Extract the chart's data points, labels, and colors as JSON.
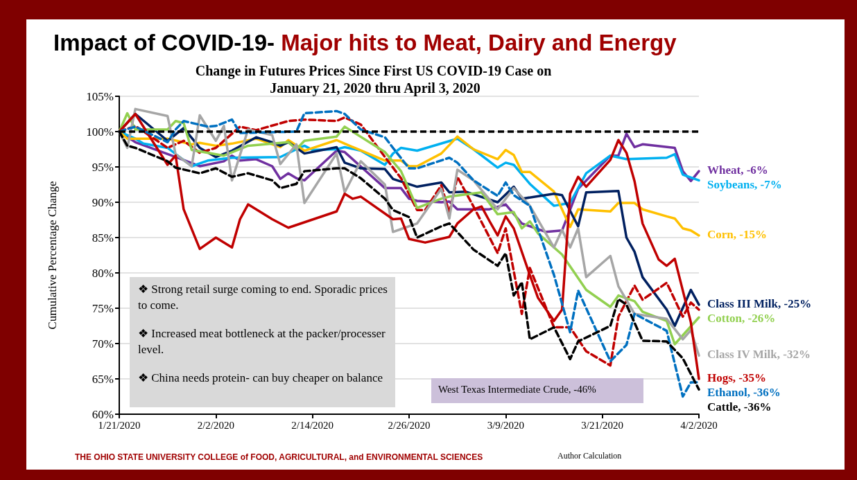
{
  "chart_data": {
    "type": "line",
    "title": "Impact of COVID-19- Major hits to Meat, Dairy and Energy",
    "subtitle": "Change in Futures Prices Since First US COVID-19 Case on January 21, 2020 thru April 3, 2020",
    "ylabel": "Cumulative Percentage Change",
    "xlim": [
      "2020-01-21",
      "2020-04-02"
    ],
    "xticks": [
      {
        "value": "2020-01-21",
        "label": "1/21/2020"
      },
      {
        "value": "2020-02-02",
        "label": "2/2/2020"
      },
      {
        "value": "2020-02-14",
        "label": "2/14/2020"
      },
      {
        "value": "2020-02-26",
        "label": "2/26/2020"
      },
      {
        "value": "2020-03-09",
        "label": "3/9/2020"
      },
      {
        "value": "2020-03-21",
        "label": "3/21/2020"
      },
      {
        "value": "2020-04-02",
        "label": "4/2/2020"
      }
    ],
    "ylim": [
      60,
      105
    ],
    "yticks": [
      {
        "value": 60,
        "label": "60%"
      },
      {
        "value": 65,
        "label": "65%"
      },
      {
        "value": 70,
        "label": "70%"
      },
      {
        "value": 75,
        "label": "75%"
      },
      {
        "value": 80,
        "label": "80%"
      },
      {
        "value": 85,
        "label": "85%"
      },
      {
        "value": 90,
        "label": "90%"
      },
      {
        "value": 95,
        "label": "95%"
      },
      {
        "value": 100,
        "label": "100%"
      },
      {
        "value": 105,
        "label": "105%"
      }
    ],
    "grid": "y",
    "legend": false,
    "marker": "none",
    "ref_lines": [
      {
        "axis": "y",
        "value": 100,
        "color": "#000000",
        "line_style": "dashed"
      }
    ],
    "annotations": [
      "❖ Strong retail surge coming to end. Sporadic prices to come.",
      "❖ Increased meat bottleneck at the packer/processer level.",
      "❖ China needs protein- can buy cheaper on balance",
      "West Texas Intermediate Crude, -46%",
      "THE OHIO STATE UNIVERSITY COLLEGE of FOOD, AGRICULTURAL, and ENVIRONMENTAL SCIENCES",
      "Author Calculation"
    ],
    "series": [
      {
        "name": "Wheat, -6%",
        "color": "#7030a0",
        "line_style": "solid",
        "x": [
          "2020-01-21",
          "2020-01-23",
          "2020-01-28",
          "2020-01-31",
          "2020-02-03",
          "2020-02-04",
          "2020-02-05",
          "2020-02-07",
          "2020-02-09",
          "2020-02-10",
          "2020-02-11",
          "2020-02-12",
          "2020-02-13",
          "2020-02-17",
          "2020-02-18",
          "2020-02-23",
          "2020-02-25",
          "2020-02-26",
          "2020-02-27",
          "2020-03-01",
          "2020-03-02",
          "2020-03-03",
          "2020-03-05",
          "2020-03-07",
          "2020-03-09",
          "2020-03-11",
          "2020-03-14",
          "2020-03-16",
          "2020-03-18",
          "2020-03-22",
          "2020-03-23",
          "2020-03-24",
          "2020-03-25",
          "2020-03-26",
          "2020-03-30",
          "2020-03-31",
          "2020-04-01",
          "2020-04-02"
        ],
        "values": [
          100,
          98.5,
          96.4,
          95.1,
          95.8,
          96.6,
          95.9,
          96.1,
          95.1,
          93.3,
          94.1,
          93.4,
          93.1,
          97.3,
          97.1,
          92,
          92,
          90.5,
          90.2,
          90,
          90.1,
          89,
          89,
          89,
          89.7,
          87,
          85.8,
          86,
          91.9,
          96.6,
          96.6,
          99.7,
          97.8,
          98.2,
          97.7,
          94.4,
          93,
          94.4
        ]
      },
      {
        "name": "Soybeans, -7%",
        "color": "#00b0f0",
        "line_style": "solid",
        "x": [
          "2020-01-21",
          "2020-01-23",
          "2020-01-24",
          "2020-01-27",
          "2020-01-30",
          "2020-02-01",
          "2020-02-04",
          "2020-02-10",
          "2020-02-12",
          "2020-02-13",
          "2020-02-14",
          "2020-02-17",
          "2020-02-18",
          "2020-02-20",
          "2020-02-23",
          "2020-02-24",
          "2020-02-25",
          "2020-02-27",
          "2020-03-03",
          "2020-03-05",
          "2020-03-08",
          "2020-03-09",
          "2020-03-10",
          "2020-03-12",
          "2020-03-15",
          "2020-03-17",
          "2020-03-19",
          "2020-03-22",
          "2020-03-24",
          "2020-03-29",
          "2020-03-30",
          "2020-03-31",
          "2020-04-02"
        ],
        "values": [
          100,
          99,
          98.3,
          97.7,
          95.1,
          95.9,
          96.3,
          96.4,
          97.5,
          98,
          97.4,
          97.5,
          97.8,
          97.3,
          95.3,
          96.9,
          97.7,
          97.3,
          99,
          97.5,
          94.9,
          95.6,
          95.3,
          92.6,
          89.5,
          89.9,
          94.1,
          96.6,
          96.1,
          96.3,
          96.8,
          93.9,
          93.1
        ]
      },
      {
        "name": "Corn, -15%",
        "color": "#ffc000",
        "line_style": "solid",
        "x": [
          "2020-01-21",
          "2020-01-22",
          "2020-01-27",
          "2020-01-30",
          "2020-01-31",
          "2020-02-02",
          "2020-02-04",
          "2020-02-07",
          "2020-02-10",
          "2020-02-11",
          "2020-02-13",
          "2020-02-17",
          "2020-02-18",
          "2020-02-23",
          "2020-02-25",
          "2020-02-26",
          "2020-02-27",
          "2020-03-01",
          "2020-03-03",
          "2020-03-05",
          "2020-03-08",
          "2020-03-09",
          "2020-03-10",
          "2020-03-11",
          "2020-03-12",
          "2020-03-15",
          "2020-03-17",
          "2020-03-18",
          "2020-03-22",
          "2020-03-23",
          "2020-03-25",
          "2020-03-26",
          "2020-03-29",
          "2020-03-30",
          "2020-03-31",
          "2020-04-01",
          "2020-04-02"
        ],
        "values": [
          100,
          99,
          99,
          98.2,
          98.4,
          98,
          98.3,
          99,
          97.8,
          98.8,
          97.3,
          98.8,
          98.3,
          95.9,
          95.9,
          95.1,
          95.1,
          96.9,
          99.3,
          97.5,
          96.1,
          97.4,
          96.7,
          94.3,
          94.3,
          91.5,
          86.5,
          89,
          88.7,
          89.9,
          89.9,
          89,
          88,
          87.7,
          86.3,
          86,
          85.3
        ]
      },
      {
        "name": "Class III Milk, -25%",
        "color": "#002060",
        "line_style": "solid",
        "x": [
          "2020-01-21",
          "2020-01-23",
          "2020-01-27",
          "2020-01-29",
          "2020-01-31",
          "2020-02-02",
          "2020-02-04",
          "2020-02-07",
          "2020-02-09",
          "2020-02-10",
          "2020-02-11",
          "2020-02-13",
          "2020-02-17",
          "2020-02-18",
          "2020-02-20",
          "2020-02-23",
          "2020-02-24",
          "2020-02-27",
          "2020-03-01",
          "2020-03-02",
          "2020-03-04",
          "2020-03-08",
          "2020-03-10",
          "2020-03-11",
          "2020-03-15",
          "2020-03-16",
          "2020-03-18",
          "2020-03-19",
          "2020-03-23",
          "2020-03-24",
          "2020-03-25",
          "2020-03-26",
          "2020-03-29",
          "2020-03-30",
          "2020-04-01",
          "2020-04-02"
        ],
        "values": [
          100,
          102.5,
          98.7,
          100.5,
          97.7,
          96.4,
          97.3,
          99.2,
          98.5,
          98,
          98.5,
          96.9,
          97.8,
          95.6,
          94.8,
          94.7,
          93.3,
          92.2,
          92.8,
          91.4,
          91.5,
          90,
          92.2,
          90.5,
          91.2,
          91,
          86.6,
          91.4,
          91.6,
          85,
          83,
          79.4,
          74.8,
          72.5,
          77.6,
          75.5
        ]
      },
      {
        "color": "#c00000",
        "line_style": "dashed",
        "x": [
          "2020-01-21",
          "2020-01-23",
          "2020-01-27",
          "2020-01-29",
          "2020-01-31",
          "2020-02-02",
          "2020-02-05",
          "2020-02-07",
          "2020-02-11",
          "2020-02-13",
          "2020-02-17",
          "2020-02-18",
          "2020-02-20",
          "2020-02-23",
          "2020-02-25",
          "2020-02-27",
          "2020-02-28",
          "2020-03-01",
          "2020-03-02",
          "2020-03-03",
          "2020-03-05",
          "2020-03-08",
          "2020-03-09",
          "2020-03-11",
          "2020-03-12",
          "2020-03-15",
          "2020-03-17",
          "2020-03-19",
          "2020-03-22",
          "2020-03-23",
          "2020-03-25",
          "2020-03-26",
          "2020-03-29",
          "2020-03-31",
          "2020-04-01",
          "2020-04-02"
        ],
        "values": [
          100,
          100.8,
          97.7,
          98.7,
          97,
          97.7,
          100.7,
          100.2,
          101.5,
          101.7,
          101.5,
          102,
          101,
          96.4,
          93.4,
          88.9,
          88.9,
          92.4,
          88.5,
          93.6,
          89.4,
          82.8,
          86.3,
          74.2,
          80.7,
          72.3,
          72.3,
          68.9,
          66.9,
          73.8,
          78.2,
          76.2,
          78.6,
          73.8,
          75.8,
          74.8
        ]
      },
      {
        "name": "Cotton, -26%",
        "color": "#92d050",
        "line_style": "solid",
        "x": [
          "2020-01-21",
          "2020-01-22",
          "2020-01-23",
          "2020-01-27",
          "2020-01-28",
          "2020-01-29",
          "2020-01-30",
          "2020-02-03",
          "2020-02-06",
          "2020-02-11",
          "2020-02-12",
          "2020-02-13",
          "2020-02-17",
          "2020-02-18",
          "2020-02-23",
          "2020-02-25",
          "2020-02-27",
          "2020-03-01",
          "2020-03-02",
          "2020-03-06",
          "2020-03-08",
          "2020-03-10",
          "2020-03-11",
          "2020-03-12",
          "2020-03-13",
          "2020-03-16",
          "2020-03-19",
          "2020-03-22",
          "2020-03-23",
          "2020-03-25",
          "2020-03-26",
          "2020-03-29",
          "2020-03-30",
          "2020-04-02"
        ],
        "values": [
          100,
          102.6,
          100.3,
          100.3,
          101.5,
          101.2,
          97.4,
          96.6,
          98,
          98.5,
          97.5,
          98.7,
          99.3,
          100.7,
          97.1,
          94.4,
          89.2,
          90.5,
          90.8,
          91.4,
          88.3,
          88.6,
          86.3,
          87.3,
          85.6,
          82.6,
          77.6,
          75.2,
          76.8,
          76,
          74.5,
          73.2,
          69.9,
          73.7
        ]
      },
      {
        "name": "Class IV Milk, -32%",
        "color": "#a6a6a6",
        "line_style": "solid",
        "x": [
          "2020-01-21",
          "2020-01-22",
          "2020-01-23",
          "2020-01-27",
          "2020-01-28",
          "2020-01-30",
          "2020-01-31",
          "2020-02-02",
          "2020-02-03",
          "2020-02-04",
          "2020-02-06",
          "2020-02-09",
          "2020-02-10",
          "2020-02-12",
          "2020-02-13",
          "2020-02-17",
          "2020-02-18",
          "2020-02-20",
          "2020-02-23",
          "2020-02-24",
          "2020-02-25",
          "2020-02-27",
          "2020-03-01",
          "2020-03-02",
          "2020-03-03",
          "2020-03-05",
          "2020-03-08",
          "2020-03-10",
          "2020-03-12",
          "2020-03-15",
          "2020-03-16",
          "2020-03-17",
          "2020-03-18",
          "2020-03-19",
          "2020-03-22",
          "2020-03-23",
          "2020-03-25",
          "2020-03-29",
          "2020-03-31",
          "2020-04-01",
          "2020-04-02"
        ],
        "values": [
          100,
          97.7,
          103.2,
          102.2,
          96.8,
          95.1,
          102.3,
          98.7,
          100.8,
          93.1,
          100.3,
          99.5,
          95.4,
          98.2,
          89.9,
          96.9,
          91.4,
          95.8,
          92.5,
          85.8,
          86.2,
          87,
          91.9,
          87.7,
          94.6,
          93.1,
          89,
          92,
          89.5,
          83.6,
          86.1,
          83.6,
          86.3,
          79.4,
          82.4,
          78.1,
          74.2,
          73.5,
          70.6,
          71.9,
          68.3
        ]
      },
      {
        "name": "Hogs, -35%",
        "color": "#c00000",
        "line_style": "solid",
        "x": [
          "2020-01-21",
          "2020-01-23",
          "2020-01-27",
          "2020-01-28",
          "2020-01-29",
          "2020-01-31",
          "2020-02-02",
          "2020-02-04",
          "2020-02-05",
          "2020-02-06",
          "2020-02-09",
          "2020-02-11",
          "2020-02-17",
          "2020-02-18",
          "2020-02-19",
          "2020-02-20",
          "2020-02-24",
          "2020-02-25",
          "2020-02-26",
          "2020-02-28",
          "2020-03-02",
          "2020-03-03",
          "2020-03-05",
          "2020-03-06",
          "2020-03-07",
          "2020-03-08",
          "2020-03-09",
          "2020-03-10",
          "2020-03-12",
          "2020-03-13",
          "2020-03-15",
          "2020-03-16",
          "2020-03-17",
          "2020-03-18",
          "2020-03-19",
          "2020-03-22",
          "2020-03-23",
          "2020-03-24",
          "2020-03-25",
          "2020-03-26",
          "2020-03-28",
          "2020-03-29",
          "2020-03-30",
          "2020-04-01",
          "2020-04-02"
        ],
        "values": [
          100,
          102.5,
          95.3,
          96.6,
          89,
          83.4,
          85,
          83.6,
          87.6,
          89.7,
          87.6,
          86.4,
          88.7,
          91.2,
          90.5,
          90.8,
          87.6,
          87.7,
          84.8,
          84.3,
          85.1,
          87,
          89,
          89.4,
          87.3,
          85.3,
          88,
          86.3,
          79.7,
          76.5,
          73.2,
          74.8,
          91.2,
          93.6,
          92.2,
          96,
          98.8,
          97,
          93,
          87,
          81.9,
          81,
          82,
          73,
          65
        ]
      },
      {
        "name": "Ethanol, -36%",
        "color": "#0070c0",
        "line_style": "dashed",
        "x": [
          "2020-01-21",
          "2020-01-23",
          "2020-01-27",
          "2020-01-28",
          "2020-01-29",
          "2020-02-01",
          "2020-02-02",
          "2020-02-04",
          "2020-02-05",
          "2020-02-12",
          "2020-02-13",
          "2020-02-17",
          "2020-02-18",
          "2020-02-20",
          "2020-02-23",
          "2020-02-24",
          "2020-02-26",
          "2020-02-27",
          "2020-03-02",
          "2020-03-03",
          "2020-03-05",
          "2020-03-08",
          "2020-03-09",
          "2020-03-10",
          "2020-03-12",
          "2020-03-15",
          "2020-03-17",
          "2020-03-18",
          "2020-03-22",
          "2020-03-24",
          "2020-03-25",
          "2020-03-29",
          "2020-03-31",
          "2020-04-01",
          "2020-04-02"
        ],
        "values": [
          100,
          100.7,
          98.5,
          100.3,
          101.5,
          100.7,
          100.8,
          101.7,
          99.8,
          100,
          102.6,
          102.9,
          102.5,
          100.3,
          99.2,
          97.7,
          94.8,
          94.8,
          96.3,
          95.6,
          93.1,
          90.9,
          92.8,
          91,
          89.5,
          79.7,
          71.6,
          77.5,
          67.5,
          69.8,
          74.2,
          71.8,
          62.5,
          64.5,
          64.5
        ]
      },
      {
        "name": "Cattle, -36%",
        "color": "#000000",
        "line_style": "dashed",
        "x": [
          "2020-01-21",
          "2020-01-22",
          "2020-01-23",
          "2020-01-27",
          "2020-01-28",
          "2020-01-31",
          "2020-02-02",
          "2020-02-04",
          "2020-02-06",
          "2020-02-09",
          "2020-02-10",
          "2020-02-12",
          "2020-02-13",
          "2020-02-17",
          "2020-02-18",
          "2020-02-20",
          "2020-02-23",
          "2020-02-24",
          "2020-02-26",
          "2020-02-27",
          "2020-03-01",
          "2020-03-02",
          "2020-03-05",
          "2020-03-08",
          "2020-03-09",
          "2020-03-10",
          "2020-03-11",
          "2020-03-12",
          "2020-03-15",
          "2020-03-17",
          "2020-03-18",
          "2020-03-22",
          "2020-03-23",
          "2020-03-24",
          "2020-03-26",
          "2020-03-29",
          "2020-03-31",
          "2020-04-02"
        ],
        "values": [
          100,
          98,
          97.7,
          95.8,
          94.9,
          94.1,
          94.8,
          93.6,
          94.1,
          93.1,
          92,
          92.6,
          94.4,
          94.8,
          94.8,
          93.4,
          90.5,
          88.9,
          87.9,
          85,
          86.6,
          87,
          83.3,
          81,
          82.8,
          76.8,
          78.7,
          70.6,
          72.3,
          67.8,
          70.3,
          72.5,
          76.3,
          75.5,
          70.4,
          70.3,
          67.9,
          63.5
        ]
      }
    ]
  }
}
